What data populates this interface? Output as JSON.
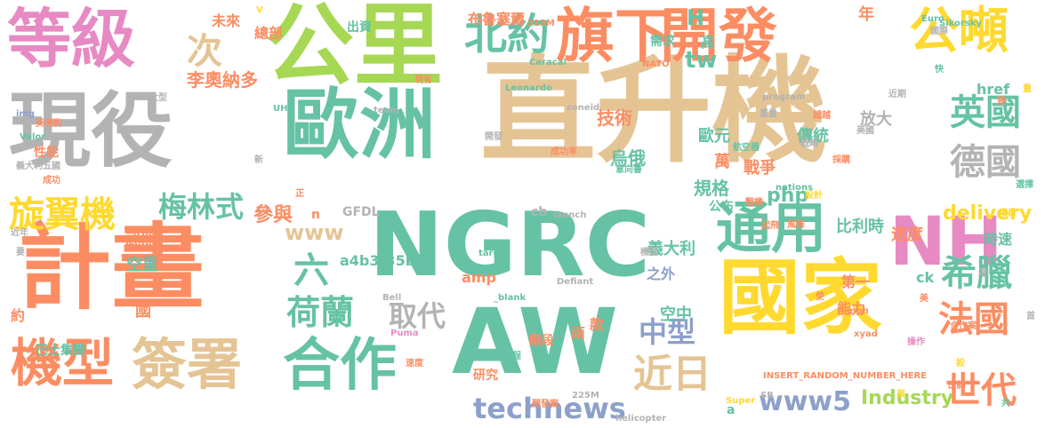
{
  "palette": {
    "green": "#66c2a5",
    "orange": "#fc8d62",
    "blue": "#8da0cb",
    "pink": "#e78ac3",
    "lime": "#a6d854",
    "yellow": "#ffd92f",
    "tan": "#e5c494",
    "gray": "#b3b3b3"
  },
  "words": [
    {
      "text": "直升機",
      "color": "tan"
    },
    {
      "text": "NGRC",
      "color": "green"
    },
    {
      "text": "計畫",
      "color": "orange"
    },
    {
      "text": "國家",
      "color": "yellow"
    },
    {
      "text": "AW",
      "color": "green"
    },
    {
      "text": "公里",
      "color": "lime"
    },
    {
      "text": "現役",
      "color": "gray"
    },
    {
      "text": "歐洲",
      "color": "green"
    },
    {
      "text": "等級",
      "color": "pink"
    },
    {
      "text": "旗下",
      "color": "orange"
    },
    {
      "text": "開發",
      "color": "orange"
    },
    {
      "text": "公噸",
      "color": "yellow"
    },
    {
      "text": "NH",
      "color": "pink"
    },
    {
      "text": "通用",
      "color": "green"
    },
    {
      "text": "簽署",
      "color": "tan"
    },
    {
      "text": "合作",
      "color": "green"
    },
    {
      "text": "機型",
      "color": "orange"
    },
    {
      "text": "北約",
      "color": "green"
    },
    {
      "text": "英國",
      "color": "green"
    },
    {
      "text": "德國",
      "color": "gray"
    },
    {
      "text": "希臘",
      "color": "green"
    },
    {
      "text": "法國",
      "color": "orange"
    },
    {
      "text": "世代",
      "color": "orange"
    },
    {
      "text": "近日",
      "color": "tan"
    },
    {
      "text": "旋翼機",
      "color": "yellow"
    },
    {
      "text": "梅林式",
      "color": "green"
    },
    {
      "text": "荷蘭",
      "color": "green"
    },
    {
      "text": "取代",
      "color": "gray"
    },
    {
      "text": "中型",
      "color": "blue"
    },
    {
      "text": "technews",
      "color": "blue"
    },
    {
      "text": "www5",
      "color": "blue"
    },
    {
      "text": "Industry",
      "color": "lime"
    },
    {
      "text": "delivery",
      "color": "yellow"
    },
    {
      "text": "次",
      "color": "tan"
    },
    {
      "text": "李奧納多",
      "color": "orange"
    },
    {
      "text": "H",
      "color": "green"
    },
    {
      "text": "tw",
      "color": "green"
    },
    {
      "text": "高",
      "color": "green"
    },
    {
      "text": "年",
      "color": "orange"
    },
    {
      "text": "六",
      "color": "green"
    },
    {
      "text": "www",
      "color": "tan"
    },
    {
      "text": "參與",
      "color": "orange"
    },
    {
      "text": "php",
      "color": "green"
    },
    {
      "text": "技術",
      "color": "orange"
    },
    {
      "text": "烏俄",
      "color": "green"
    },
    {
      "text": "規格",
      "color": "green"
    },
    {
      "text": "戰爭",
      "color": "orange"
    },
    {
      "text": "歐元",
      "color": "green"
    },
    {
      "text": "傳統",
      "color": "green"
    },
    {
      "text": "放大",
      "color": "gray"
    },
    {
      "text": "巴士集團",
      "color": "green"
    },
    {
      "text": "國",
      "color": "orange"
    },
    {
      "text": "空中",
      "color": "green"
    },
    {
      "text": "空重",
      "color": "green"
    },
    {
      "text": "武器",
      "color": "orange"
    },
    {
      "text": "GFDL",
      "color": "gray"
    },
    {
      "text": "a4b3f35b",
      "color": "green"
    },
    {
      "text": "義大利",
      "color": "green"
    },
    {
      "text": "比利時",
      "color": "green"
    },
    {
      "text": "速度",
      "color": "orange"
    },
    {
      "text": "時速",
      "color": "green"
    },
    {
      "text": "第一",
      "color": "orange"
    },
    {
      "text": "能力",
      "color": "orange"
    },
    {
      "text": "之外",
      "color": "blue"
    },
    {
      "text": "兩",
      "color": "orange"
    },
    {
      "text": "款",
      "color": "orange"
    },
    {
      "text": "階段",
      "color": "orange"
    },
    {
      "text": "研究",
      "color": "orange"
    },
    {
      "text": "amp",
      "color": "orange"
    },
    {
      "text": "ck",
      "color": "green"
    },
    {
      "text": "cb",
      "color": "gray"
    },
    {
      "text": "a",
      "color": "green"
    },
    {
      "text": "約",
      "color": "orange"
    },
    {
      "text": "總部",
      "color": "orange"
    },
    {
      "text": "未來",
      "color": "orange"
    },
    {
      "text": "出資",
      "color": "green"
    },
    {
      "text": "需求",
      "color": "green"
    },
    {
      "text": "布魯塞爾",
      "color": "orange"
    },
    {
      "text": "性能",
      "color": "orange"
    },
    {
      "text": "萬",
      "color": "orange"
    },
    {
      "text": "公布",
      "color": "green"
    },
    {
      "text": "href",
      "color": "green"
    },
    {
      "text": "n",
      "color": "orange"
    },
    {
      "text": "Sikorsky",
      "color": "green"
    },
    {
      "text": "Caracal",
      "color": "green"
    },
    {
      "text": "Leonardo",
      "color": "green"
    },
    {
      "text": "NATO",
      "color": "orange"
    },
    {
      "text": "Euro",
      "color": "green"
    },
    {
      "text": "team",
      "color": "gray"
    },
    {
      "text": "zoneid",
      "color": "gray"
    },
    {
      "text": "program",
      "color": "gray"
    },
    {
      "text": "nations",
      "color": "green"
    },
    {
      "text": "Valor",
      "color": "green"
    },
    {
      "text": "UH",
      "color": "green"
    },
    {
      "text": "launch",
      "color": "gray"
    },
    {
      "text": "target",
      "color": "green"
    },
    {
      "text": "Bell",
      "color": "gray"
    },
    {
      "text": "Puma",
      "color": "pink"
    },
    {
      "text": "Defiant",
      "color": "gray"
    },
    {
      "text": "_blank",
      "color": "green"
    },
    {
      "text": "mph",
      "color": "orange"
    },
    {
      "text": "xyad",
      "color": "orange"
    },
    {
      "text": "Super",
      "color": "yellow"
    },
    {
      "text": "helicopter",
      "color": "gray"
    },
    {
      "text": "INSERT_RANDOM_NUMBER_HERE",
      "color": "orange"
    },
    {
      "text": "225M",
      "color": "gray"
    },
    {
      "text": "215M",
      "color": "orange"
    },
    {
      "text": "SB",
      "color": "gray"
    },
    {
      "text": "img",
      "color": "blue"
    },
    {
      "text": "V",
      "color": "yellow"
    },
    {
      "text": "大型",
      "color": "gray"
    },
    {
      "text": "現有",
      "color": "orange"
    },
    {
      "text": "成功率",
      "color": "orange"
    },
    {
      "text": "美國",
      "color": "gray"
    },
    {
      "text": "戰機",
      "color": "orange"
    },
    {
      "text": "航空器",
      "color": "green"
    },
    {
      "text": "意向書",
      "color": "green"
    },
    {
      "text": "開發案",
      "color": "orange"
    },
    {
      "text": "義大利五國",
      "color": "gray"
    },
    {
      "text": "成功",
      "color": "orange"
    },
    {
      "text": "近年",
      "color": "gray"
    },
    {
      "text": "美洲豹",
      "color": "orange"
    },
    {
      "text": "合作案",
      "color": "orange"
    },
    {
      "text": "日前",
      "color": "orange"
    },
    {
      "text": "操作",
      "color": "pink"
    },
    {
      "text": "近期",
      "color": "gray"
    },
    {
      "text": "重量",
      "color": "gray"
    },
    {
      "text": "超越",
      "color": "orange"
    },
    {
      "text": "戰略",
      "color": "gray"
    },
    {
      "text": "風險",
      "color": "orange"
    },
    {
      "text": "機型",
      "color": "gray"
    },
    {
      "text": "開發",
      "color": "gray"
    },
    {
      "text": "航程",
      "color": "green"
    },
    {
      "text": "速度",
      "color": "orange"
    },
    {
      "text": "項目",
      "color": "yellow"
    },
    {
      "text": "國際",
      "color": "gray"
    },
    {
      "text": "採購",
      "color": "orange"
    },
    {
      "text": "設計",
      "color": "yellow"
    },
    {
      "text": "起飛",
      "color": "orange"
    },
    {
      "text": "選擇",
      "color": "green"
    },
    {
      "text": "新",
      "color": "gray"
    },
    {
      "text": "正",
      "color": "orange"
    },
    {
      "text": "使",
      "color": "orange"
    },
    {
      "text": "共",
      "color": "green"
    },
    {
      "text": "與",
      "color": "yellow"
    },
    {
      "text": "替",
      "color": "orange"
    },
    {
      "text": "設",
      "color": "yellow"
    },
    {
      "text": "美",
      "color": "orange"
    },
    {
      "text": "首",
      "color": "gray"
    },
    {
      "text": "要",
      "color": "gray"
    },
    {
      "text": "快",
      "color": "green"
    },
    {
      "text": "達",
      "color": "gray"
    },
    {
      "text": "量",
      "color": "yellow"
    }
  ]
}
